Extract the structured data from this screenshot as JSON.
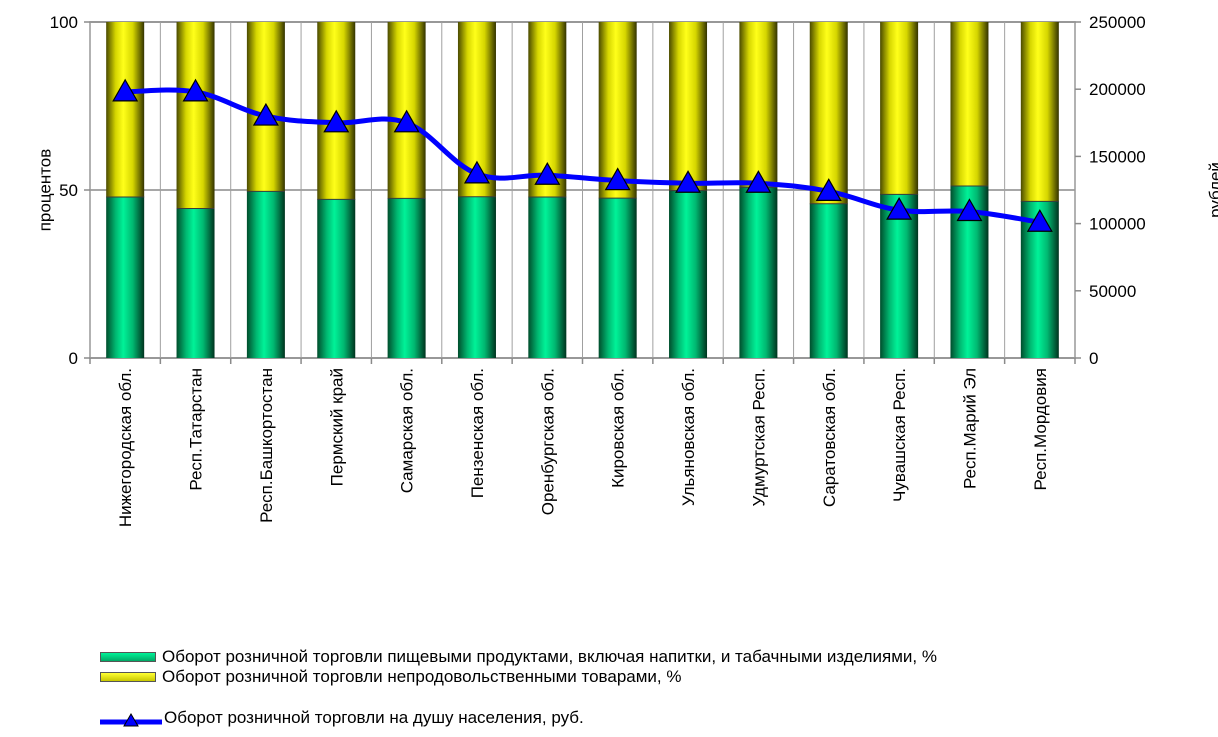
{
  "chart_data": {
    "type": "bar",
    "stacked": true,
    "categories": [
      "Нижегородская обл.",
      "Респ.Татарстан",
      "Респ.Башкортостан",
      "Пермский край",
      "Самарская обл.",
      "Пензенская обл.",
      "Оренбургская обл.",
      "Кировская обл.",
      "Ульяновская обл.",
      "Удмуртская Респ.",
      "Саратовская обл.",
      "Чувашская Респ.",
      "Респ.Марий Эл",
      "Респ.Мордовия"
    ],
    "ylabel": "процентов",
    "y2label": "рублей",
    "ylim": [
      0,
      100
    ],
    "y2lim": [
      0,
      250000
    ],
    "yticks": [
      "0",
      "50",
      "100"
    ],
    "y2ticks": [
      "0",
      "50000",
      "100000",
      "150000",
      "200000",
      "250000"
    ],
    "grid": true,
    "legend_position": "bottom",
    "series": [
      {
        "name": "Оборот розничной торговли  пищевыми продуктами, включая напитки, и табачными изделиями, %",
        "type": "bar",
        "axis": "left",
        "color": "#00e28a",
        "values": [
          47.9,
          44.5,
          49.6,
          47.2,
          47.5,
          48,
          47.9,
          47.6,
          49.8,
          50.8,
          45.9,
          48.7,
          51.2,
          46.6
        ]
      },
      {
        "name": "Оборот розничной торговли непродовольственными товарами, %",
        "type": "bar",
        "axis": "left",
        "color": "#ffff00",
        "values": [
          52.1,
          55.5,
          50.4,
          52.8,
          52.5,
          52,
          52.1,
          52.4,
          50.2,
          49.2,
          54.1,
          51.3,
          48.8,
          53.4
        ]
      },
      {
        "name": "Оборот розничной торговли на душу населения, руб.",
        "type": "line",
        "axis": "right",
        "color": "#0000ff",
        "values": [
          198000,
          198000,
          180000,
          175000,
          175000,
          137000,
          136000,
          132000,
          130000,
          130000,
          124000,
          110000,
          109000,
          101000
        ]
      }
    ]
  }
}
